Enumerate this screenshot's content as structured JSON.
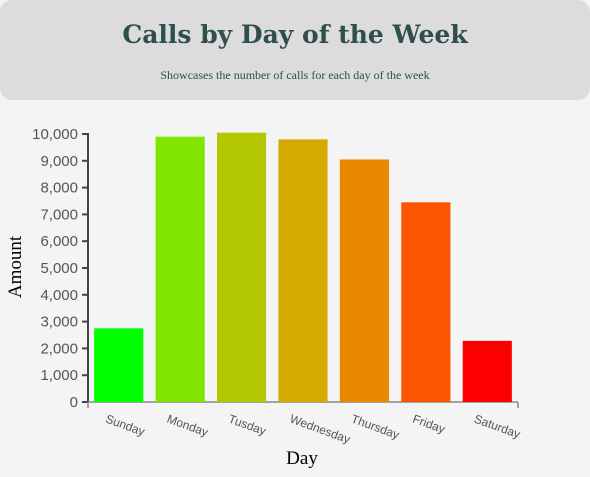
{
  "header": {
    "title": "Calls by Day of the Week",
    "subtitle": "Showcases the number of calls for each day of the week"
  },
  "chart_data": {
    "type": "bar",
    "title": "Calls by Day of the Week",
    "subtitle": "Showcases the number of calls for each day of the week",
    "xlabel": "Day",
    "ylabel": "Amount",
    "categories": [
      "Sunday",
      "Monday",
      "Tusday",
      "Wednesday",
      "Thursday",
      "Friday",
      "Saturday"
    ],
    "values": [
      2750,
      9900,
      10050,
      9800,
      9050,
      7450,
      2280
    ],
    "colors": [
      "#00ff00",
      "#80e600",
      "#b3c800",
      "#d4aa00",
      "#ea8800",
      "#fa5500",
      "#ff0000"
    ],
    "ylim": [
      0,
      10000
    ],
    "yticks": [
      0,
      1000,
      2000,
      3000,
      4000,
      5000,
      6000,
      7000,
      8000,
      9000,
      10000
    ],
    "ytick_labels": [
      "0",
      "1,000",
      "2,000",
      "3,000",
      "4,000",
      "5,000",
      "6,000",
      "7,000",
      "8,000",
      "9,000",
      "10,000"
    ],
    "grid": false,
    "legend": "none"
  }
}
